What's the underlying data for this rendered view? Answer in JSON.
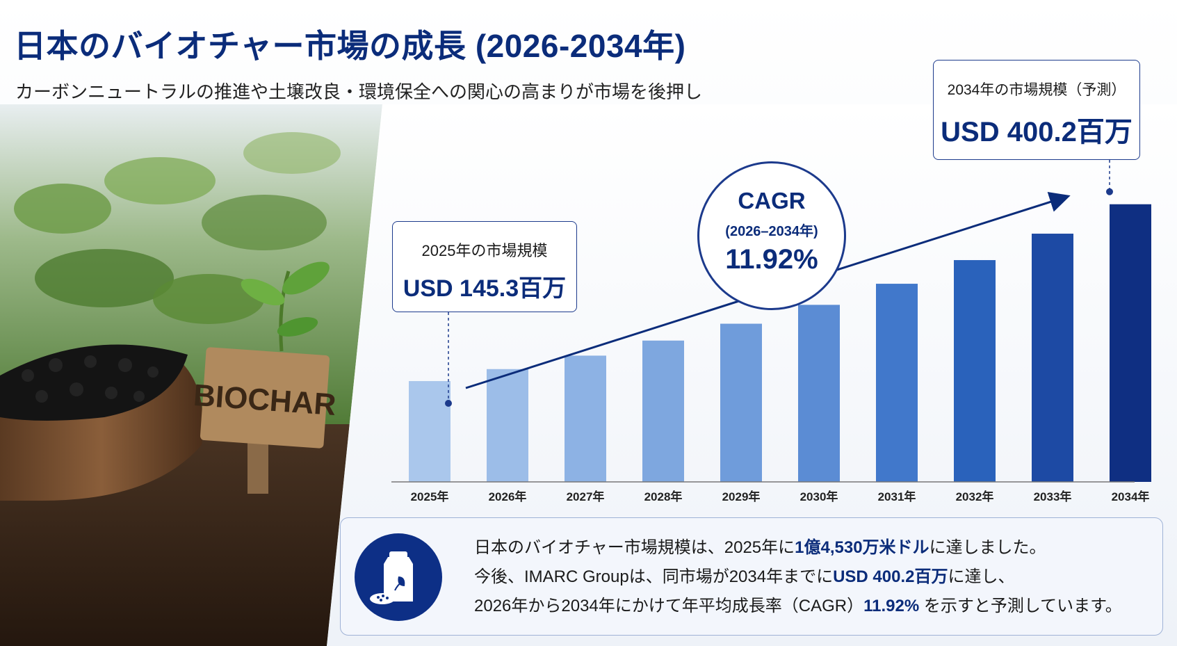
{
  "header": {
    "title": "日本のバイオチャー市場の成長 (2026-2034年)",
    "subtitle": "カーボンニュートラルの推進や土壌改良・環境保全への関心の高まりが市場を後押し"
  },
  "photo": {
    "sign_text": "BIOCHAR"
  },
  "callouts": {
    "start": {
      "label": "2025年の市場規模",
      "value": "USD 145.3百万"
    },
    "end": {
      "label": "2034年の市場規模（予測）",
      "value": "USD 400.2百万"
    },
    "cagr": {
      "title": "CAGR",
      "period": "(2026–2034年)",
      "value": "11.92%"
    }
  },
  "chart_data": {
    "type": "bar",
    "categories": [
      "2025年",
      "2026年",
      "2027年",
      "2028年",
      "2029年",
      "2030年",
      "2031年",
      "2032年",
      "2033年",
      "2034年"
    ],
    "values": [
      145.3,
      162.6,
      182.0,
      203.7,
      228.0,
      255.2,
      285.6,
      319.7,
      357.8,
      400.2
    ],
    "unit": "USD 百万",
    "ylim": [
      0,
      430
    ],
    "grid": false,
    "bar_colors": [
      "#aac7ec",
      "#9cbde8",
      "#8db2e4",
      "#7ea7df",
      "#6f9cdb",
      "#5b8cd4",
      "#4178cb",
      "#2a62bb",
      "#1d4aa4",
      "#0f2f82"
    ],
    "trend_arrow": true
  },
  "info": {
    "icon": "biochar-bag-icon",
    "line1_pre": "日本のバイオチャー市場規模は、2025年に",
    "line1_hl": "1億4,530万米ドル",
    "line1_post": "に達しました。",
    "line2_pre": "今後、IMARC Groupは、同市場が2034年までに",
    "line2_hl": "USD 400.2百万",
    "line2_post": "に達し、",
    "line3_pre": "2026年から2034年にかけて年平均成長率（CAGR）",
    "line3_hl": "11.92%",
    "line3_post": " を示すと予測しています。"
  },
  "colors": {
    "navy": "#0b2c7a",
    "panel": "#eef2f8"
  }
}
